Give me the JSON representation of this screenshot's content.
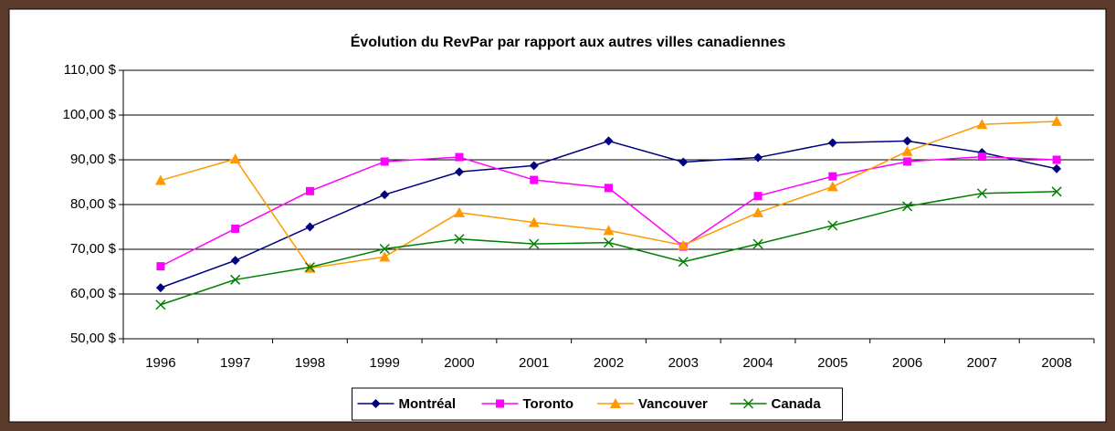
{
  "chart_data": {
    "type": "line",
    "title": "Évolution du RevPar par rapport aux autres villes canadiennes",
    "categories": [
      "1996",
      "1997",
      "1998",
      "1999",
      "2000",
      "2001",
      "2002",
      "2003",
      "2004",
      "2005",
      "2006",
      "2007",
      "2008"
    ],
    "series": [
      {
        "name": "Montréal",
        "color": "#000080",
        "marker": "diamond",
        "values": [
          61.4,
          67.5,
          75,
          82.2,
          87.3,
          88.7,
          94.2,
          89.5,
          90.5,
          93.8,
          94.2,
          91.6,
          88
        ]
      },
      {
        "name": "Toronto",
        "color": "#ff00ff",
        "marker": "square",
        "values": [
          66.2,
          74.6,
          83,
          89.6,
          90.6,
          85.5,
          83.7,
          70.6,
          81.9,
          86.3,
          89.6,
          90.7,
          90
        ]
      },
      {
        "name": "Vancouver",
        "color": "#ff9900",
        "marker": "triangle",
        "values": [
          85.4,
          90.2,
          65.8,
          68.3,
          78.2,
          76,
          74.2,
          70.9,
          78.2,
          84,
          91.9,
          97.9,
          98.6
        ]
      },
      {
        "name": "Canada",
        "color": "#008000",
        "marker": "x",
        "values": [
          57.6,
          63.2,
          66,
          70.1,
          72.3,
          71.2,
          71.5,
          67.2,
          71.2,
          75.3,
          79.6,
          82.5,
          82.9
        ]
      }
    ],
    "ylim": [
      50,
      110
    ],
    "yticks": [
      {
        "value": 50,
        "label": "50,00 $"
      },
      {
        "value": 60,
        "label": "60,00 $"
      },
      {
        "value": 70,
        "label": "70,00 $"
      },
      {
        "value": 80,
        "label": "80,00 $"
      },
      {
        "value": 90,
        "label": "90,00 $"
      },
      {
        "value": 100,
        "label": "100,00 $"
      },
      {
        "value": 110,
        "label": "110,00 $"
      }
    ],
    "grid": true,
    "legend": "bottom"
  }
}
